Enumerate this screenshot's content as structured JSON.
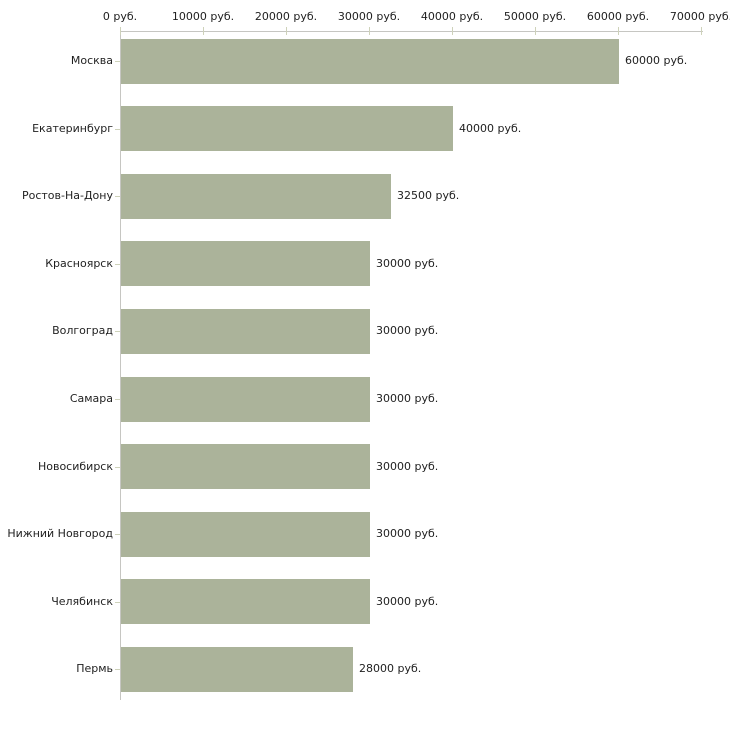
{
  "chart_data": {
    "type": "bar",
    "orientation": "horizontal",
    "title": "",
    "categories": [
      "Москва",
      "Екатеринбург",
      "Ростов-На-Дону",
      "Красноярск",
      "Волгоград",
      "Самара",
      "Новосибирск",
      "Нижний Новгород",
      "Челябинск",
      "Пермь"
    ],
    "values": [
      60000,
      40000,
      32500,
      30000,
      30000,
      30000,
      30000,
      30000,
      30000,
      28000
    ],
    "value_labels": [
      "60000 руб.",
      "40000 руб.",
      "32500 руб.",
      "30000 руб.",
      "30000 руб.",
      "30000 руб.",
      "30000 руб.",
      "30000 руб.",
      "30000 руб.",
      "28000 руб."
    ],
    "xlabel": "",
    "ylabel": "",
    "axis": {
      "position": "top",
      "min": 0,
      "max": 70000,
      "step": 10000,
      "tick_values": [
        0,
        10000,
        20000,
        30000,
        40000,
        50000,
        60000,
        70000
      ],
      "tick_labels": [
        "0 руб.",
        "10000 руб.",
        "20000 руб.",
        "30000 руб.",
        "40000 руб.",
        "50000 руб.",
        "60000 руб.",
        "70000 руб."
      ],
      "unit": "руб."
    },
    "grid": false,
    "legend": false,
    "colors": {
      "bar": "#abb39a",
      "axis_line": "#c6c6c2",
      "tick": "#ced2ba",
      "text": "#1f1f1f",
      "background": "#ffffff"
    }
  }
}
